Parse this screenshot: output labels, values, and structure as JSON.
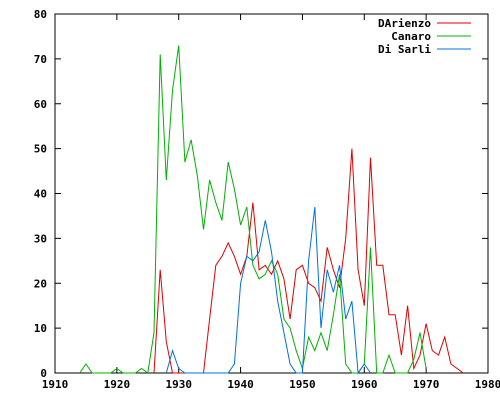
{
  "chart_data": {
    "type": "line",
    "title": "",
    "xlabel": "",
    "ylabel": "",
    "xlim": [
      1910,
      1980
    ],
    "ylim": [
      0,
      80
    ],
    "x_ticks": [
      1910,
      1920,
      1930,
      1940,
      1950,
      1960,
      1970,
      1980
    ],
    "y_ticks": [
      0,
      10,
      20,
      30,
      40,
      50,
      60,
      70,
      80
    ],
    "grid": false,
    "legend_position": "top-right",
    "series": [
      {
        "name": "DArienzo",
        "color": "#e00000",
        "points": [
          [
            1926,
            0
          ],
          [
            1927,
            23
          ],
          [
            1928,
            7
          ],
          [
            1929,
            0
          ],
          [
            1930,
            0
          ],
          [
            1931,
            0
          ],
          [
            1932,
            0
          ],
          [
            1933,
            0
          ],
          [
            1934,
            0
          ],
          [
            1935,
            12
          ],
          [
            1936,
            24
          ],
          [
            1937,
            26
          ],
          [
            1938,
            29
          ],
          [
            1939,
            26
          ],
          [
            1940,
            22
          ],
          [
            1941,
            26
          ],
          [
            1942,
            38
          ],
          [
            1943,
            23
          ],
          [
            1944,
            24
          ],
          [
            1945,
            22
          ],
          [
            1946,
            25
          ],
          [
            1947,
            21
          ],
          [
            1948,
            12
          ],
          [
            1949,
            23
          ],
          [
            1950,
            24
          ],
          [
            1951,
            20
          ],
          [
            1952,
            19
          ],
          [
            1953,
            16
          ],
          [
            1954,
            28
          ],
          [
            1955,
            23
          ],
          [
            1956,
            19
          ],
          [
            1957,
            30
          ],
          [
            1958,
            50
          ],
          [
            1959,
            23
          ],
          [
            1960,
            15
          ],
          [
            1961,
            48
          ],
          [
            1962,
            24
          ],
          [
            1963,
            24
          ],
          [
            1964,
            13
          ],
          [
            1965,
            13
          ],
          [
            1966,
            4
          ],
          [
            1967,
            15
          ],
          [
            1968,
            1
          ],
          [
            1969,
            4
          ],
          [
            1970,
            11
          ],
          [
            1971,
            5
          ],
          [
            1972,
            4
          ],
          [
            1973,
            8
          ],
          [
            1974,
            2
          ],
          [
            1975,
            1
          ],
          [
            1976,
            0
          ]
        ]
      },
      {
        "name": "Canaro",
        "color": "#00b000",
        "points": [
          [
            1914,
            0
          ],
          [
            1915,
            2
          ],
          [
            1916,
            0
          ],
          [
            1917,
            0
          ],
          [
            1918,
            0
          ],
          [
            1919,
            0
          ],
          [
            1920,
            1
          ],
          [
            1921,
            0
          ],
          [
            1922,
            0
          ],
          [
            1923,
            0
          ],
          [
            1924,
            1
          ],
          [
            1925,
            0
          ],
          [
            1926,
            9
          ],
          [
            1927,
            71
          ],
          [
            1928,
            43
          ],
          [
            1929,
            63
          ],
          [
            1930,
            73
          ],
          [
            1931,
            47
          ],
          [
            1932,
            52
          ],
          [
            1933,
            44
          ],
          [
            1934,
            32
          ],
          [
            1935,
            43
          ],
          [
            1936,
            38
          ],
          [
            1937,
            34
          ],
          [
            1938,
            47
          ],
          [
            1939,
            41
          ],
          [
            1940,
            33
          ],
          [
            1941,
            37
          ],
          [
            1942,
            24
          ],
          [
            1943,
            21
          ],
          [
            1944,
            22
          ],
          [
            1945,
            25
          ],
          [
            1946,
            22
          ],
          [
            1947,
            12
          ],
          [
            1948,
            10
          ],
          [
            1949,
            5
          ],
          [
            1950,
            1
          ],
          [
            1951,
            8
          ],
          [
            1952,
            5
          ],
          [
            1953,
            9
          ],
          [
            1954,
            5
          ],
          [
            1955,
            13
          ],
          [
            1956,
            22
          ],
          [
            1957,
            2
          ],
          [
            1958,
            0
          ],
          [
            1959,
            0
          ],
          [
            1960,
            2
          ],
          [
            1961,
            28
          ],
          [
            1962,
            0
          ],
          [
            1963,
            0
          ],
          [
            1964,
            4
          ],
          [
            1965,
            0
          ],
          [
            1966,
            0
          ],
          [
            1967,
            0
          ],
          [
            1968,
            3
          ],
          [
            1969,
            9
          ],
          [
            1970,
            1
          ]
        ]
      },
      {
        "name": "Di Sarli",
        "color": "#0070e0",
        "points": [
          [
            1928,
            0
          ],
          [
            1929,
            5
          ],
          [
            1930,
            1
          ],
          [
            1931,
            0
          ],
          [
            1932,
            0
          ],
          [
            1933,
            0
          ],
          [
            1934,
            0
          ],
          [
            1935,
            0
          ],
          [
            1936,
            0
          ],
          [
            1937,
            0
          ],
          [
            1938,
            0
          ],
          [
            1939,
            2
          ],
          [
            1940,
            20
          ],
          [
            1941,
            26
          ],
          [
            1942,
            25
          ],
          [
            1943,
            27
          ],
          [
            1944,
            34
          ],
          [
            1945,
            27
          ],
          [
            1946,
            16
          ],
          [
            1947,
            9
          ],
          [
            1948,
            2
          ],
          [
            1949,
            0
          ],
          [
            1950,
            0
          ],
          [
            1951,
            25
          ],
          [
            1952,
            37
          ],
          [
            1953,
            10
          ],
          [
            1954,
            23
          ],
          [
            1955,
            18
          ],
          [
            1956,
            24
          ],
          [
            1957,
            12
          ],
          [
            1958,
            16
          ],
          [
            1959,
            0
          ],
          [
            1960,
            2
          ],
          [
            1961,
            0
          ]
        ]
      }
    ]
  }
}
